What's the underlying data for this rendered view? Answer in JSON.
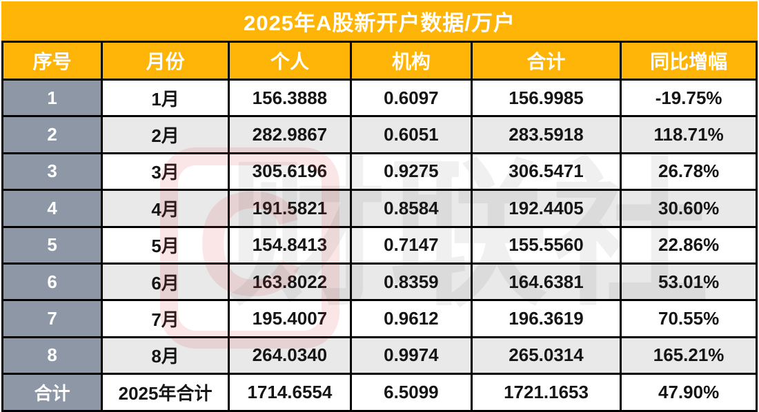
{
  "chart_data": {
    "type": "table",
    "title": "2025年A股新开户数据/万户",
    "columns": [
      "序号",
      "月份",
      "个人",
      "机构",
      "合计",
      "同比增幅"
    ],
    "rows": [
      [
        "1",
        "1月",
        "156.3888",
        "0.6097",
        "156.9985",
        "-19.75%"
      ],
      [
        "2",
        "2月",
        "282.9867",
        "0.6051",
        "283.5918",
        "118.71%"
      ],
      [
        "3",
        "3月",
        "305.6196",
        "0.9275",
        "306.5471",
        "26.78%"
      ],
      [
        "4",
        "4月",
        "191.5821",
        "0.8584",
        "192.4405",
        "30.60%"
      ],
      [
        "5",
        "5月",
        "154.8413",
        "0.7147",
        "155.5560",
        "22.86%"
      ],
      [
        "6",
        "6月",
        "163.8022",
        "0.8359",
        "164.6381",
        "53.01%"
      ],
      [
        "7",
        "7月",
        "195.4007",
        "0.9612",
        "196.3619",
        "70.55%"
      ],
      [
        "8",
        "8月",
        "264.0340",
        "0.9974",
        "265.0314",
        "165.21%"
      ],
      [
        "合计",
        "2025年合计",
        "1714.6554",
        "6.5099",
        "1721.1653",
        "47.90%"
      ]
    ]
  },
  "watermark": {
    "logo_letter": "C",
    "text": "财联社"
  },
  "colors": {
    "orange": "#FFB408",
    "index_gray": "#8D97A6",
    "alt_row_gray": "#E9E9E9",
    "border_black": "#000000",
    "title_text": "#FFFFFF",
    "cell_text": "#151515",
    "watermark_pink": "#D63C48"
  }
}
